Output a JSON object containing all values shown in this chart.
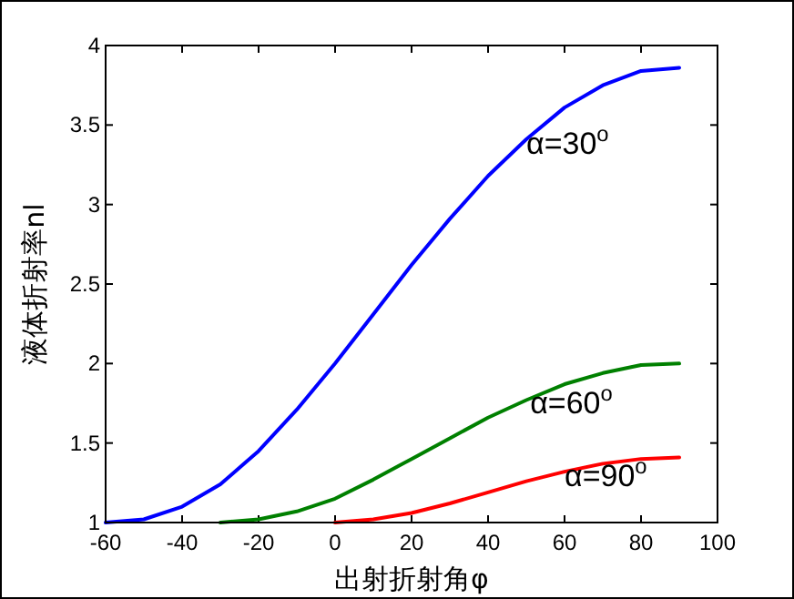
{
  "chart_data": {
    "type": "line",
    "xlabel": "出射折射角φ",
    "ylabel": "液体折射率nl",
    "xlim": [
      -60,
      100
    ],
    "ylim": [
      1,
      4
    ],
    "xticks": [
      -60,
      -40,
      -20,
      0,
      20,
      40,
      60,
      80,
      100
    ],
    "yticks": [
      1,
      1.5,
      2,
      2.5,
      3,
      3.5,
      4
    ],
    "grid": false,
    "marker": "none",
    "line_style": "solid",
    "series": [
      {
        "color": "#0000ff",
        "x": [
          -60,
          -50,
          -40,
          -30,
          -20,
          -10,
          0,
          10,
          20,
          30,
          40,
          50,
          60,
          70,
          80,
          90
        ],
        "values": [
          1.0,
          1.02,
          1.1,
          1.24,
          1.45,
          1.71,
          2.0,
          2.31,
          2.62,
          2.91,
          3.18,
          3.41,
          3.61,
          3.75,
          3.84,
          3.86
        ]
      },
      {
        "color": "#008000",
        "x": [
          -30,
          -20,
          -10,
          0,
          10,
          20,
          30,
          40,
          50,
          60,
          70,
          80,
          90
        ],
        "values": [
          1.0,
          1.02,
          1.07,
          1.15,
          1.27,
          1.4,
          1.53,
          1.66,
          1.77,
          1.87,
          1.94,
          1.99,
          2.0
        ]
      },
      {
        "color": "#ff0000",
        "x": [
          0,
          10,
          20,
          30,
          40,
          50,
          60,
          70,
          80,
          90
        ],
        "values": [
          1.0,
          1.02,
          1.06,
          1.12,
          1.19,
          1.26,
          1.32,
          1.37,
          1.4,
          1.41
        ]
      }
    ],
    "annotations": [
      {
        "text": "α=30$^{o}$",
        "x": 50,
        "y": 3.41
      },
      {
        "text": "α=60$^{o}$",
        "x": 51,
        "y": 1.78
      },
      {
        "text": "α=90$^{o}$",
        "x": 60,
        "y": 1.32
      }
    ]
  }
}
